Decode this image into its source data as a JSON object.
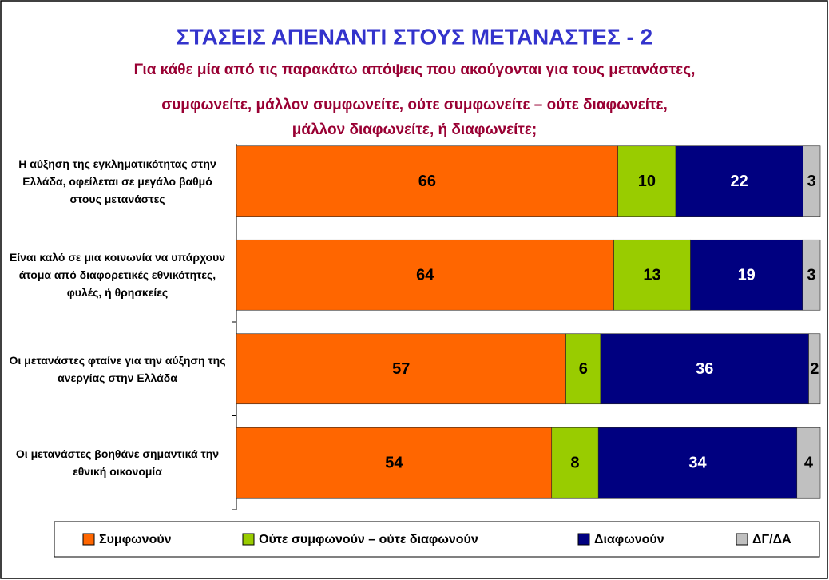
{
  "chart_data": {
    "type": "stacked_percent_barh",
    "title": "ΣΤΑΣΕΙΣ ΑΠΕΝΑΝΤΙ ΣΤΟΥΣ ΜΕΤΑΝΑΣΤΕΣ - 2",
    "subtitle": [
      "Για κάθε μία από τις παρακάτω απόψεις που ακούγονται για τους μετανάστες,",
      "συμφωνείτε, μάλλον συμφωνείτε, ούτε συμφωνείτε – ούτε διαφωνείτε,",
      "μάλλον διαφωνείτε, ή διαφωνείτε;"
    ],
    "categories": [
      "Η αύξηση της εγκληματικότητας στην Ελλάδα, οφείλεται σε μεγάλο βαθμό στους μετανάστες",
      "Είναι καλό σε μια κοινωνία να υπάρχουν άτομα από διαφορετικές εθνικότητες, φυλές, ή θρησκείες",
      "Οι μετανάστες φταίνε για την αύξηση της ανεργίας στην Ελλάδα",
      "Οι μετανάστες βοηθάνε σημαντικά την εθνική οικονομία"
    ],
    "series": [
      {
        "name": "Συμφωνούν",
        "color": "#ff6600",
        "label_color": "#000000",
        "values": [
          66,
          64,
          57,
          54
        ]
      },
      {
        "name": "Ούτε συμφωνούν – ούτε διαφωνούν",
        "color": "#99cc00",
        "label_color": "#000000",
        "values": [
          10,
          13,
          6,
          8
        ]
      },
      {
        "name": "Διαφωνούν",
        "color": "#000080",
        "label_color": "#ffffff",
        "values": [
          22,
          19,
          36,
          34
        ]
      },
      {
        "name": "ΔΓ/ΔΑ",
        "color": "#c0c0c0",
        "label_color": "#000000",
        "values": [
          3,
          3,
          2,
          4
        ]
      }
    ],
    "legend": "bottom"
  }
}
